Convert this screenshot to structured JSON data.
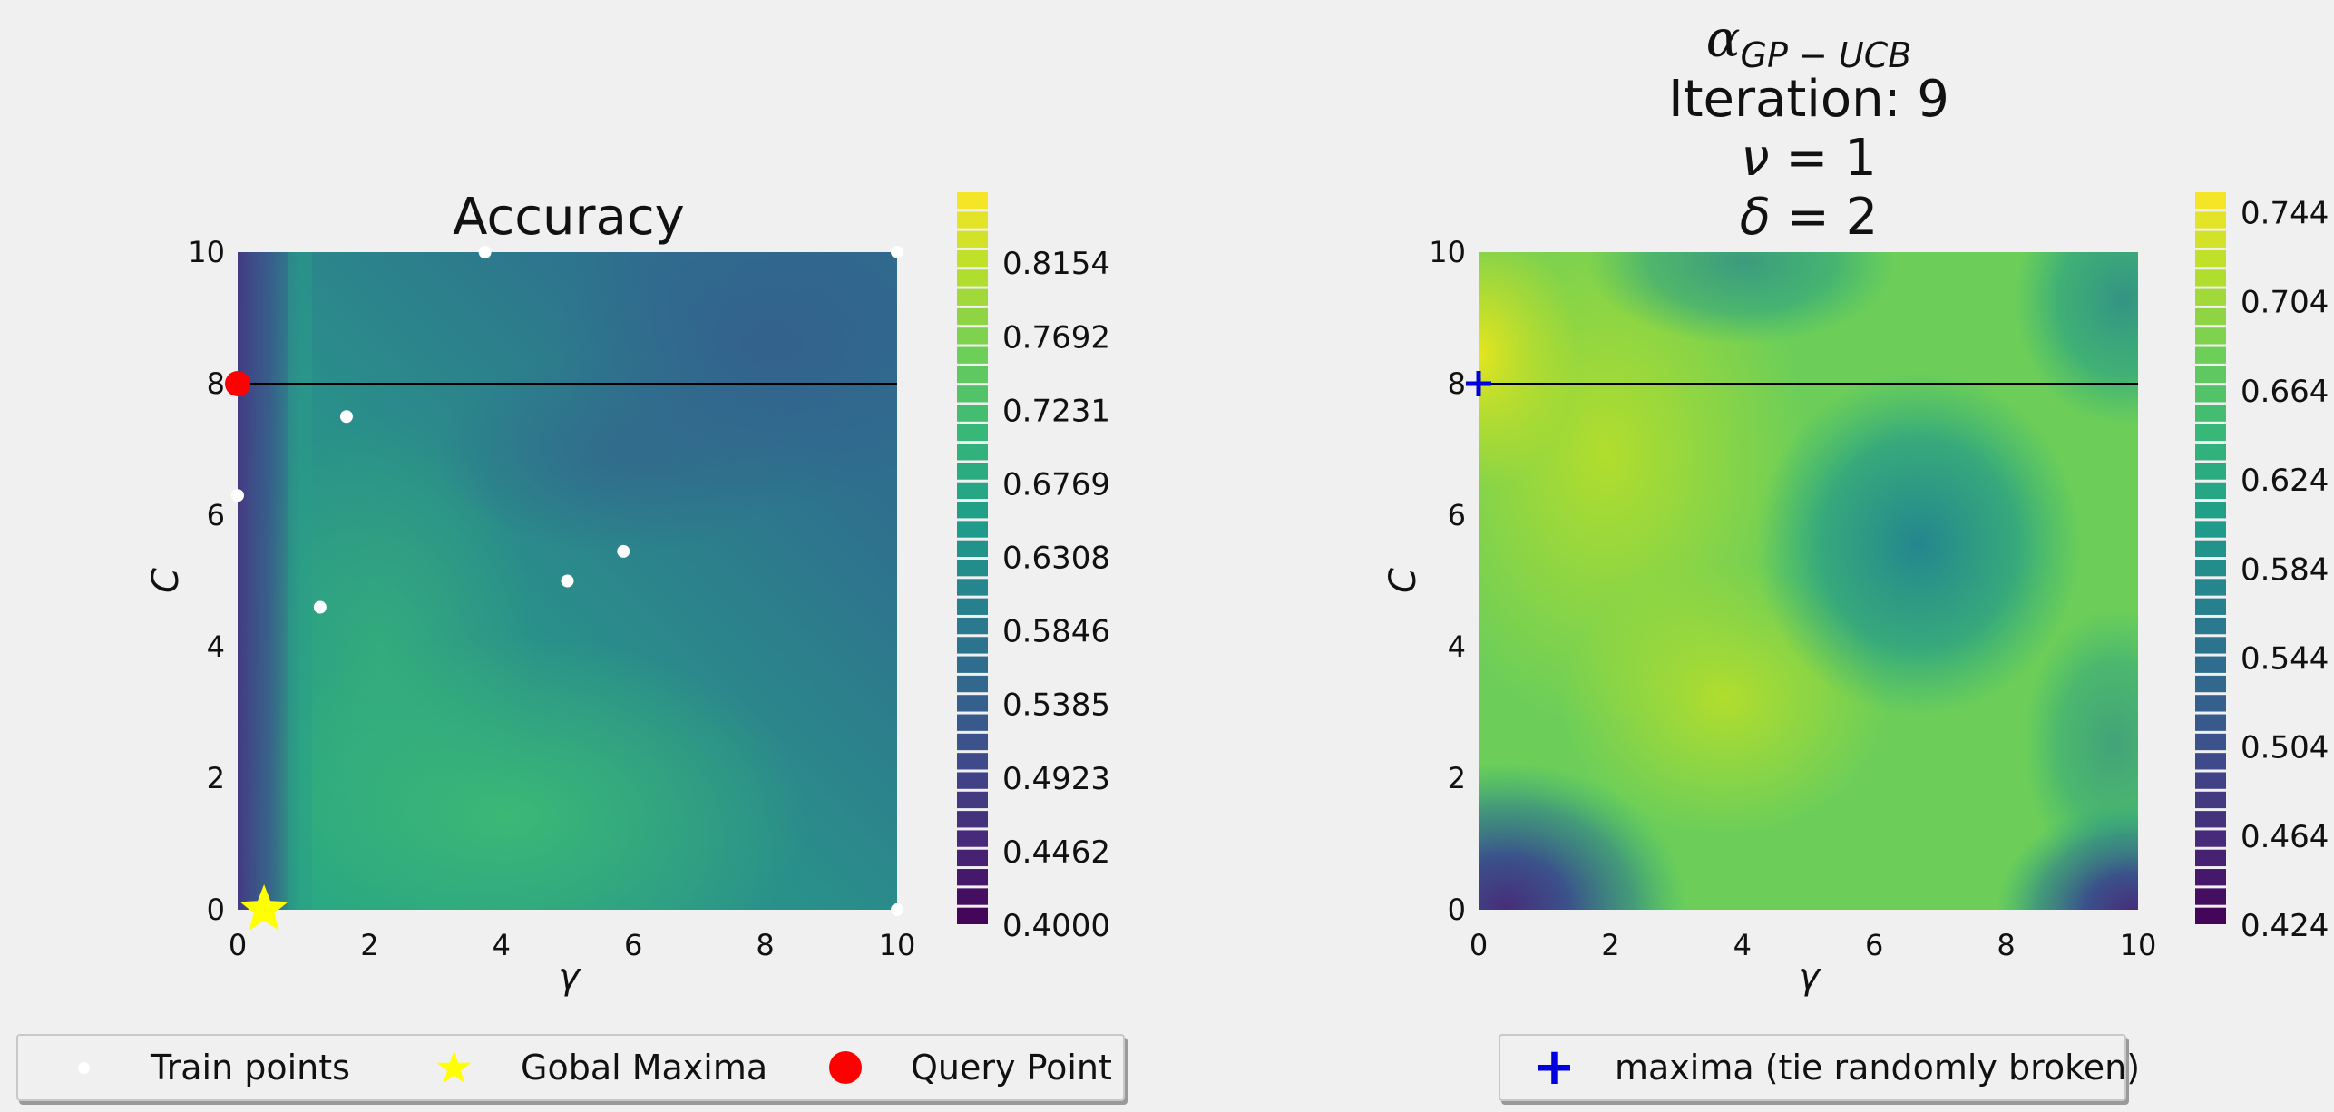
{
  "chart_data": [
    {
      "type": "heatmap",
      "title": "Accuracy",
      "xlabel": "γ",
      "ylabel": "C",
      "xlim": [
        0,
        10
      ],
      "ylim": [
        0,
        10
      ],
      "xticks": [
        "0",
        "2",
        "4",
        "6",
        "8",
        "10"
      ],
      "yticks": [
        "0",
        "2",
        "4",
        "6",
        "8",
        "10"
      ],
      "grid": false,
      "colormap": "viridis",
      "colorbar": {
        "range": [
          0.4,
          0.8615
        ],
        "ticks": [
          "0.4000",
          "0.4462",
          "0.4923",
          "0.5385",
          "0.5846",
          "0.6308",
          "0.6769",
          "0.7231",
          "0.7692",
          "0.8154"
        ]
      },
      "horizontal_line_y": 8.0,
      "train_points": [
        {
          "x": 3.75,
          "y": 10.0
        },
        {
          "x": 1.65,
          "y": 7.5
        },
        {
          "x": 0.0,
          "y": 6.3
        },
        {
          "x": 5.85,
          "y": 5.45
        },
        {
          "x": 5.0,
          "y": 5.0
        },
        {
          "x": 1.25,
          "y": 4.6
        },
        {
          "x": 10.0,
          "y": 10.0
        },
        {
          "x": 10.0,
          "y": 0.0
        }
      ],
      "global_maxima": {
        "x": 0.4,
        "y": 0.0
      },
      "query_point": {
        "x": 0.0,
        "y": 8.0
      }
    },
    {
      "type": "heatmap",
      "title_lines": [
        "αGP−UCB",
        "Iteration: 9",
        "ν = 1",
        "δ = 2"
      ],
      "xlabel": "γ",
      "ylabel": "C",
      "xlim": [
        0,
        10
      ],
      "ylim": [
        0,
        10
      ],
      "xticks": [
        "0",
        "2",
        "4",
        "6",
        "8",
        "10"
      ],
      "yticks": [
        "0",
        "2",
        "4",
        "6",
        "8",
        "10"
      ],
      "grid": false,
      "colormap": "viridis",
      "colorbar": {
        "range": [
          0.424,
          0.754
        ],
        "ticks": [
          "0.424",
          "0.464",
          "0.504",
          "0.544",
          "0.584",
          "0.624",
          "0.664",
          "0.704",
          "0.744"
        ]
      },
      "horizontal_line_y": 8.0,
      "maxima": {
        "x": 0.0,
        "y": 8.0
      }
    }
  ],
  "legend_left": {
    "train": "Train points",
    "star": "Gobal Maxima",
    "query": "Query Point"
  },
  "legend_right": {
    "maxima": "maxima (tie randomly broken)"
  },
  "colors": {
    "query": "#ff0000",
    "star": "#ffff00",
    "maxima": "#0000dd",
    "train": "#ffffff",
    "background": "#f0f0f0"
  }
}
